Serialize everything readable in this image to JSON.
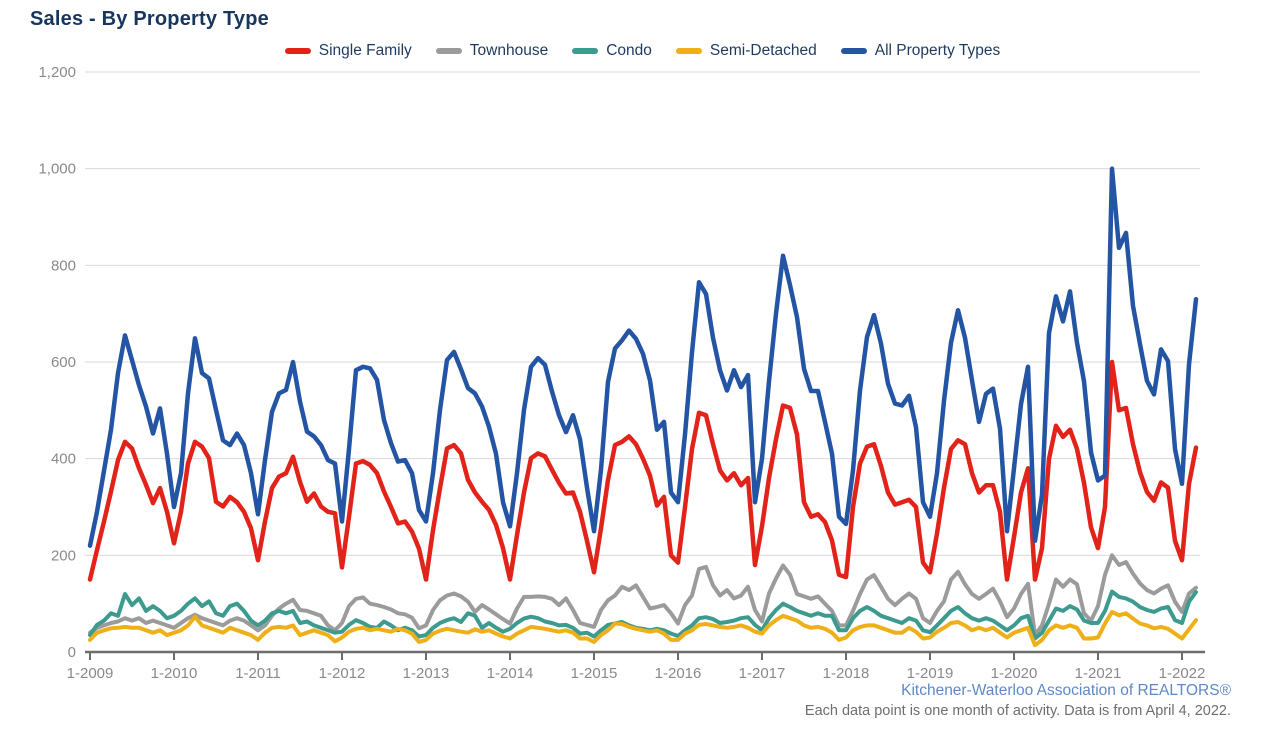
{
  "header": {
    "title": "Sales - By Property Type"
  },
  "footer": {
    "source": "Kitchener-Waterloo Association of REALTORS®",
    "note": "Each data point is one month of activity. Data is from April 4, 2022."
  },
  "colors": {
    "title_text": "#17365d",
    "legend_text": "#1f3a5f",
    "axis_text": "#8a8a8a",
    "gridline": "#d9d9d9",
    "axis_line": "#6d6d6d",
    "source_text": "#5d8ac6",
    "note_text": "#6e6e6e"
  },
  "chart_data": {
    "type": "line",
    "title": "Sales - By Property Type",
    "xlabel": "",
    "ylabel": "",
    "x_unit": "month",
    "x_range_months": [
      "Jan 2009",
      "Mar 2022"
    ],
    "x_tick_labels": [
      "1-2009",
      "1-2010",
      "1-2011",
      "1-2012",
      "1-2013",
      "1-2014",
      "1-2015",
      "1-2016",
      "1-2017",
      "1-2018",
      "1-2019",
      "1-2020",
      "1-2021",
      "1-2022"
    ],
    "months_per_tick": 12,
    "ylim": [
      0,
      1200
    ],
    "y_ticks": [
      0,
      200,
      400,
      600,
      800,
      1000,
      1200
    ],
    "y_tick_labels": [
      "0",
      "200",
      "400",
      "600",
      "800",
      "1,000",
      "1,200"
    ],
    "grid": "horizontal",
    "legend_position": "top",
    "series": [
      {
        "name": "Single Family",
        "color": "#e2231a",
        "line_width": 4.5,
        "values": [
          150,
          211,
          270,
          332,
          397,
          435,
          421,
          380,
          346,
          308,
          339,
          290,
          225,
          290,
          390,
          435,
          425,
          401,
          311,
          301,
          321,
          310,
          290,
          256,
          190,
          270,
          339,
          363,
          370,
          404,
          352,
          311,
          328,
          301,
          290,
          287,
          175,
          280,
          390,
          395,
          387,
          370,
          332,
          300,
          266,
          270,
          249,
          214,
          150,
          252,
          339,
          421,
          428,
          411,
          356,
          330,
          311,
          294,
          263,
          215,
          150,
          242,
          330,
          401,
          411,
          405,
          377,
          350,
          328,
          330,
          290,
          230,
          165,
          256,
          356,
          428,
          435,
          446,
          430,
          400,
          365,
          303,
          321,
          200,
          185,
          300,
          420,
          495,
          490,
          430,
          376,
          355,
          370,
          345,
          360,
          180,
          260,
          360,
          440,
          510,
          505,
          450,
          310,
          280,
          285,
          269,
          231,
          160,
          155,
          300,
          390,
          425,
          430,
          385,
          330,
          305,
          310,
          315,
          300,
          185,
          165,
          245,
          340,
          420,
          438,
          430,
          370,
          330,
          345,
          345,
          290,
          150,
          238,
          330,
          380,
          150,
          215,
          400,
          468,
          445,
          460,
          420,
          350,
          258,
          215,
          300,
          600,
          500,
          505,
          430,
          372,
          331,
          313,
          351,
          340,
          230,
          190,
          348,
          423
        ]
      },
      {
        "name": "Townhouse",
        "color": "#9b9b9b",
        "line_width": 4,
        "values": [
          40,
          50,
          55,
          60,
          63,
          70,
          65,
          70,
          60,
          65,
          60,
          55,
          50,
          60,
          70,
          77,
          70,
          65,
          60,
          55,
          65,
          70,
          65,
          55,
          45,
          55,
          75,
          90,
          100,
          108,
          87,
          85,
          80,
          75,
          55,
          45,
          60,
          95,
          110,
          113,
          100,
          97,
          93,
          88,
          80,
          78,
          71,
          49,
          55,
          87,
          107,
          117,
          121,
          115,
          104,
          83,
          97,
          88,
          78,
          68,
          59,
          90,
          114,
          114,
          115,
          114,
          110,
          97,
          111,
          87,
          60,
          56,
          52,
          87,
          107,
          117,
          135,
          128,
          138,
          114,
          90,
          93,
          97,
          80,
          59,
          97,
          117,
          172,
          176,
          138,
          117,
          128,
          111,
          117,
          135,
          87,
          63,
          121,
          152,
          179,
          160,
          120,
          115,
          110,
          115,
          100,
          85,
          55,
          55,
          85,
          120,
          150,
          159,
          135,
          110,
          97,
          110,
          121,
          110,
          70,
          60,
          85,
          105,
          150,
          166,
          140,
          120,
          110,
          120,
          131,
          105,
          72,
          90,
          120,
          141,
          35,
          55,
          100,
          150,
          135,
          150,
          140,
          80,
          65,
          95,
          160,
          200,
          180,
          186,
          162,
          142,
          128,
          121,
          131,
          138,
          104,
          83,
          121,
          133
        ]
      },
      {
        "name": "Condo",
        "color": "#3c9a8e",
        "line_width": 4,
        "values": [
          35,
          56,
          65,
          80,
          75,
          120,
          97,
          111,
          85,
          95,
          85,
          70,
          75,
          85,
          100,
          111,
          95,
          105,
          80,
          75,
          95,
          100,
          85,
          65,
          55,
          65,
          80,
          85,
          80,
          85,
          60,
          63,
          55,
          50,
          45,
          40,
          42,
          56,
          66,
          60,
          52,
          50,
          63,
          55,
          45,
          50,
          45,
          32,
          35,
          50,
          60,
          66,
          70,
          62,
          80,
          75,
          50,
          60,
          50,
          42,
          48,
          60,
          69,
          73,
          70,
          63,
          60,
          55,
          56,
          50,
          38,
          40,
          32,
          45,
          56,
          59,
          62,
          55,
          50,
          48,
          45,
          48,
          45,
          38,
          33,
          45,
          55,
          70,
          72,
          68,
          60,
          62,
          65,
          70,
          72,
          56,
          45,
          70,
          87,
          100,
          93,
          85,
          80,
          75,
          80,
          75,
          75,
          45,
          45,
          70,
          85,
          93,
          85,
          75,
          70,
          65,
          60,
          70,
          65,
          45,
          41,
          55,
          70,
          85,
          93,
          80,
          70,
          65,
          70,
          65,
          55,
          45,
          55,
          70,
          75,
          28,
          40,
          65,
          90,
          85,
          95,
          88,
          65,
          60,
          60,
          85,
          125,
          114,
          111,
          104,
          93,
          87,
          83,
          90,
          93,
          66,
          60,
          104,
          124
        ]
      },
      {
        "name": "Semi-Detached",
        "color": "#eeaf18",
        "line_width": 4,
        "values": [
          25,
          40,
          45,
          49,
          50,
          52,
          50,
          50,
          45,
          40,
          45,
          35,
          40,
          45,
          55,
          73,
          55,
          50,
          45,
          40,
          50,
          45,
          40,
          35,
          25,
          40,
          50,
          52,
          50,
          55,
          35,
          40,
          45,
          40,
          35,
          22,
          30,
          42,
          48,
          50,
          45,
          48,
          45,
          42,
          48,
          45,
          38,
          21,
          25,
          38,
          44,
          48,
          45,
          42,
          40,
          47,
          42,
          45,
          38,
          32,
          28,
          38,
          45,
          52,
          50,
          48,
          45,
          42,
          45,
          40,
          28,
          28,
          21,
          35,
          45,
          59,
          58,
          52,
          48,
          45,
          42,
          45,
          38,
          25,
          25,
          38,
          45,
          56,
          58,
          55,
          52,
          50,
          52,
          55,
          50,
          42,
          38,
          55,
          66,
          75,
          70,
          65,
          55,
          50,
          52,
          48,
          40,
          25,
          30,
          45,
          52,
          55,
          55,
          50,
          45,
          40,
          40,
          50,
          42,
          28,
          30,
          42,
          50,
          60,
          62,
          55,
          45,
          50,
          45,
          50,
          40,
          30,
          40,
          45,
          50,
          14,
          25,
          45,
          55,
          50,
          55,
          50,
          28,
          28,
          30,
          59,
          83,
          76,
          80,
          69,
          59,
          55,
          49,
          52,
          48,
          38,
          28,
          47,
          66
        ]
      },
      {
        "name": "All Property Types",
        "color": "#2355a4",
        "line_width": 4.5,
        "values": [
          220,
          290,
          375,
          460,
          577,
          655,
          604,
          552,
          508,
          452,
          504,
          410,
          300,
          370,
          535,
          649,
          577,
          566,
          501,
          438,
          428,
          452,
          428,
          370,
          285,
          397,
          497,
          535,
          542,
          600,
          518,
          456,
          446,
          428,
          397,
          390,
          270,
          420,
          583,
          590,
          587,
          563,
          480,
          432,
          394,
          397,
          370,
          294,
          270,
          370,
          501,
          604,
          621,
          585,
          546,
          535,
          508,
          466,
          410,
          310,
          260,
          370,
          501,
          590,
          608,
          594,
          539,
          490,
          455,
          490,
          440,
          340,
          250,
          377,
          559,
          628,
          645,
          665,
          648,
          617,
          562,
          460,
          476,
          330,
          310,
          450,
          620,
          765,
          741,
          650,
          583,
          541,
          583,
          548,
          573,
          310,
          400,
          560,
          700,
          820,
          759,
          693,
          586,
          540,
          540,
          476,
          410,
          280,
          265,
          376,
          541,
          652,
          697,
          638,
          555,
          514,
          510,
          530,
          465,
          310,
          280,
          370,
          520,
          640,
          707,
          650,
          562,
          476,
          534,
          545,
          462,
          250,
          380,
          513,
          590,
          230,
          325,
          660,
          736,
          684,
          746,
          640,
          560,
          413,
          355,
          365,
          1000,
          836,
          867,
          716,
          637,
          561,
          533,
          626,
          602,
          420,
          348,
          595,
          730
        ]
      }
    ]
  }
}
